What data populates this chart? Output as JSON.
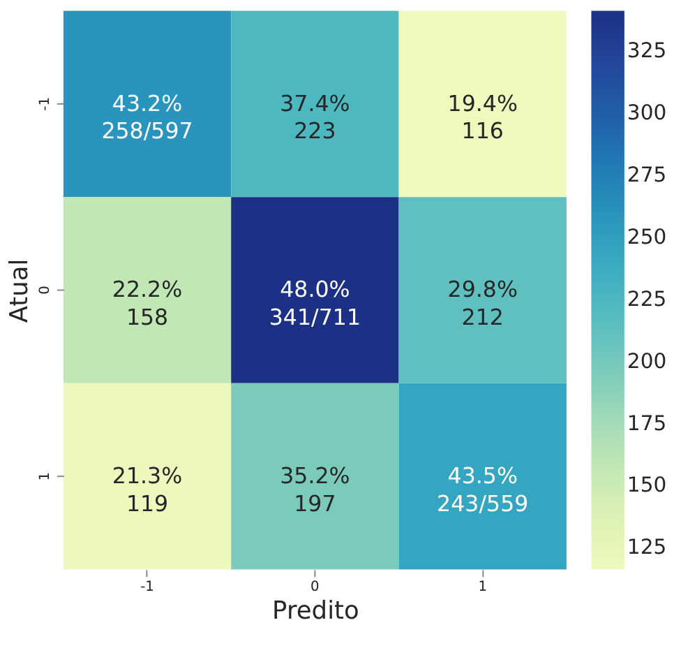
{
  "chart_data": {
    "type": "heatmap",
    "xlabel": "Predito",
    "ylabel": "Atual",
    "categories": [
      "-1",
      "0",
      "1"
    ],
    "y_categories": [
      "-1",
      "0",
      "1"
    ],
    "cells": [
      [
        258,
        223,
        116
      ],
      [
        158,
        341,
        212
      ],
      [
        119,
        197,
        243
      ]
    ],
    "cell_labels": [
      [
        "43.2%\n258/597",
        "37.4%\n223",
        "19.4%\n116"
      ],
      [
        "22.2%\n158",
        "48.0%\n341/711",
        "29.8%\n212"
      ],
      [
        "21.3%\n119",
        "35.2%\n197",
        "43.5%\n243/559"
      ]
    ],
    "clim": [
      116,
      341
    ],
    "cticks": [
      125,
      150,
      175,
      200,
      225,
      250,
      275,
      300,
      325
    ]
  }
}
